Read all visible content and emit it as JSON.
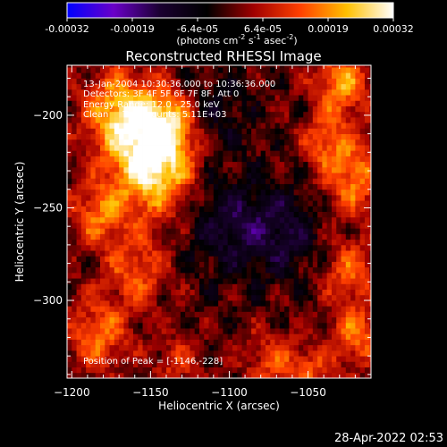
{
  "colorbar": {
    "tick_labels": [
      "-0.00032",
      "-0.00019",
      "-6.4e-05",
      "6.4e-05",
      "0.00019",
      "0.00032"
    ],
    "unit_label_main": "(photons cm",
    "unit_sup_1": "-2",
    "unit_mid": " s",
    "unit_sup_2": "-1",
    "unit_mid2": " asec",
    "unit_sup_3": "-2",
    "unit_end": ")",
    "range": [
      -0.00032,
      0.00032
    ],
    "colormap_stops": [
      "#0000ff",
      "#6a00c8",
      "#1a0030",
      "#000000",
      "#a00000",
      "#ff4000",
      "#ffc000",
      "#ffffff"
    ]
  },
  "chart_data": {
    "type": "heatmap",
    "title": "Reconstructed RHESSI Image",
    "xlabel": "Heliocentric X (arcsec)",
    "ylabel": "Heliocentric Y (arcsec)",
    "xlim": [
      -1203,
      -1010
    ],
    "ylim": [
      -342,
      -173
    ],
    "x_ticks": [
      -1200,
      -1150,
      -1100,
      -1050
    ],
    "y_ticks": [
      -200,
      -250,
      -300
    ],
    "x_tick_labels": [
      "−1200",
      "−1150",
      "−1100",
      "−1050"
    ],
    "y_tick_labels": [
      "−200",
      "−250",
      "−300"
    ],
    "grid": false,
    "annotations": [
      "13-Jan-2004 10:30:36.000 to 10:36:36.000",
      "Detectors: 3F 4F 5F 6F 7F 8F, Att 0",
      "Energy Range: 12.0 - 25.0 keV",
      "Clean     Total counts: 5.11E+03"
    ],
    "peak_label": "Position of Peak = [-1146,-228]",
    "peak_position": [
      -1146,
      -228
    ],
    "total_counts": 5110,
    "energy_range_kev": [
      12.0,
      25.0
    ],
    "sources": [
      {
        "x": -1150,
        "y": -228,
        "sigma": 18,
        "amp": 0.00032
      },
      {
        "x": -1170,
        "y": -200,
        "sigma": 16,
        "amp": 0.00024
      },
      {
        "x": -1140,
        "y": -205,
        "sigma": 12,
        "amp": 0.00018
      },
      {
        "x": -1185,
        "y": -255,
        "sigma": 12,
        "amp": 0.00016
      },
      {
        "x": -1160,
        "y": -285,
        "sigma": 14,
        "amp": 0.00014
      },
      {
        "x": -1185,
        "y": -320,
        "sigma": 14,
        "amp": 0.00016
      },
      {
        "x": -1030,
        "y": -185,
        "sigma": 12,
        "amp": 0.0002
      },
      {
        "x": -1022,
        "y": -235,
        "sigma": 14,
        "amp": 0.00018
      },
      {
        "x": -1040,
        "y": -215,
        "sigma": 10,
        "amp": 0.00014
      },
      {
        "x": -1025,
        "y": -285,
        "sigma": 12,
        "amp": 0.00014
      },
      {
        "x": -1020,
        "y": -320,
        "sigma": 12,
        "amp": 0.00016
      },
      {
        "x": -1075,
        "y": -335,
        "sigma": 12,
        "amp": 0.00012
      },
      {
        "x": -1050,
        "y": -340,
        "sigma": 10,
        "amp": 0.00012
      },
      {
        "x": -1135,
        "y": -335,
        "sigma": 10,
        "amp": 0.0001
      },
      {
        "x": -1100,
        "y": -260,
        "sigma": 20,
        "amp": -0.00012
      },
      {
        "x": -1065,
        "y": -265,
        "sigma": 16,
        "amp": -0.0001
      },
      {
        "x": -1110,
        "y": -200,
        "sigma": 14,
        "amp": -8e-05
      }
    ]
  },
  "footer": {
    "timestamp": "28-Apr-2022 02:53"
  }
}
